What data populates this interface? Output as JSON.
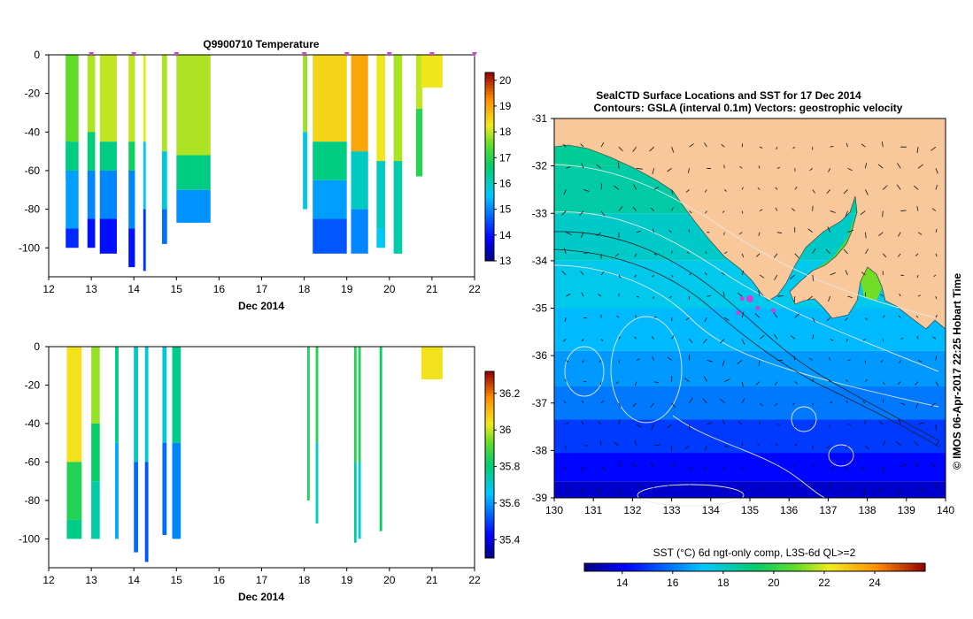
{
  "colors": {
    "land": "#f9c89a",
    "marker": "#d040d0",
    "axis": "#000000"
  },
  "chart_data": [
    {
      "type": "heatmap",
      "title": "Q9900710  Temperature",
      "xlabel": "Dec 2014",
      "ylabel": "",
      "xlim": [
        12,
        22
      ],
      "ylim": [
        -115,
        0
      ],
      "xticks": [
        "12",
        "13",
        "14",
        "15",
        "16",
        "17",
        "18",
        "19",
        "20",
        "21",
        "22"
      ],
      "yticks": [
        "0",
        "-20",
        "-40",
        "-60",
        "-80",
        "-100"
      ],
      "profile_markers_day": [
        13,
        14,
        15,
        18,
        19,
        20,
        21,
        22
      ],
      "colorbar": {
        "min": 13,
        "max": 20.3,
        "ticks": [
          "13",
          "14",
          "15",
          "16",
          "17",
          "18",
          "19",
          "20"
        ]
      },
      "profiles": [
        {
          "day": 12.45,
          "w": 0.1,
          "layers": [
            [
              0,
              -40,
              17.6
            ],
            [
              -40,
              -65,
              16.0
            ]
          ]
        },
        {
          "day": 12.55,
          "w": 0.3,
          "layers": [
            [
              0,
              -45,
              17.5
            ],
            [
              -45,
              -60,
              16.5
            ],
            [
              -60,
              -90,
              15.2
            ],
            [
              -90,
              -100,
              14.2
            ]
          ]
        },
        {
          "day": 13.0,
          "w": 0.18,
          "layers": [
            [
              0,
              -40,
              17.9
            ],
            [
              -40,
              -60,
              16.6
            ],
            [
              -60,
              -85,
              15.0
            ],
            [
              -85,
              -100,
              14.0
            ]
          ]
        },
        {
          "day": 13.4,
          "w": 0.4,
          "layers": [
            [
              0,
              -45,
              18.0
            ],
            [
              -45,
              -60,
              16.5
            ],
            [
              -60,
              -85,
              15.0
            ],
            [
              -85,
              -103,
              14.0
            ]
          ]
        },
        {
          "day": 13.95,
          "w": 0.15,
          "layers": [
            [
              0,
              -45,
              18.0
            ],
            [
              -45,
              -60,
              16.8
            ],
            [
              -60,
              -90,
              15.0
            ],
            [
              -90,
              -110,
              14.0
            ]
          ]
        },
        {
          "day": 14.25,
          "w": 0.06,
          "layers": [
            [
              0,
              -45,
              18.2
            ],
            [
              -45,
              -80,
              15.7
            ],
            [
              -80,
              -112,
              14.3
            ]
          ]
        },
        {
          "day": 14.72,
          "w": 0.12,
          "layers": [
            [
              0,
              -50,
              17.9
            ],
            [
              -50,
              -80,
              15.8
            ],
            [
              -80,
              -98,
              14.8
            ]
          ]
        },
        {
          "day": 15.4,
          "w": 0.8,
          "layers": [
            [
              0,
              -52,
              17.9
            ],
            [
              -52,
              -70,
              16.5
            ],
            [
              -70,
              -87,
              15.1
            ]
          ]
        },
        {
          "day": 18.02,
          "w": 0.1,
          "layers": [
            [
              0,
              -40,
              17.8
            ],
            [
              -40,
              -80,
              15.8
            ]
          ]
        },
        {
          "day": 18.6,
          "w": 0.8,
          "layers": [
            [
              0,
              -45,
              18.5
            ],
            [
              -45,
              -65,
              16.5
            ],
            [
              -65,
              -85,
              15.2
            ],
            [
              -85,
              -103,
              14.6
            ]
          ]
        },
        {
          "day": 19.3,
          "w": 0.4,
          "layers": [
            [
              0,
              -50,
              19.0
            ],
            [
              -50,
              -80,
              16.0
            ],
            [
              -80,
              -103,
              15.0
            ]
          ]
        },
        {
          "day": 19.8,
          "w": 0.2,
          "layers": [
            [
              0,
              -55,
              18.3
            ],
            [
              -55,
              -90,
              16.0
            ],
            [
              -90,
              -100,
              15.6
            ]
          ]
        },
        {
          "day": 20.2,
          "w": 0.2,
          "layers": [
            [
              0,
              -55,
              17.9
            ],
            [
              -55,
              -103,
              16.2
            ]
          ]
        },
        {
          "day": 20.7,
          "w": 0.15,
          "layers": [
            [
              0,
              -28,
              18.0
            ],
            [
              -28,
              -63,
              17.0
            ]
          ]
        },
        {
          "day": 21.0,
          "w": 0.5,
          "layers": [
            [
              0,
              -17,
              18.3
            ]
          ]
        }
      ]
    },
    {
      "type": "heatmap",
      "title": "",
      "xlabel": "Dec 2014",
      "ylabel": "",
      "xlim": [
        12,
        22
      ],
      "ylim": [
        -115,
        0
      ],
      "xticks": [
        "12",
        "13",
        "14",
        "15",
        "16",
        "17",
        "18",
        "19",
        "20",
        "21",
        "22"
      ],
      "yticks": [
        "0",
        "-20",
        "-40",
        "-60",
        "-80",
        "-100"
      ],
      "colorbar": {
        "min": 35.3,
        "max": 36.32,
        "ticks": [
          "35.4",
          "35.6",
          "35.8",
          "36",
          "36.2"
        ]
      },
      "profiles": [
        {
          "day": 12.6,
          "w": 0.35,
          "layers": [
            [
              0,
              -60,
              36.05
            ],
            [
              -60,
              -90,
              35.85
            ],
            [
              -90,
              -100,
              35.78
            ]
          ]
        },
        {
          "day": 13.1,
          "w": 0.2,
          "layers": [
            [
              0,
              -40,
              35.97
            ],
            [
              -40,
              -70,
              35.82
            ],
            [
              -70,
              -100,
              35.75
            ]
          ]
        },
        {
          "day": 13.6,
          "w": 0.08,
          "layers": [
            [
              0,
              -50,
              35.78
            ],
            [
              -50,
              -100,
              35.62
            ]
          ]
        },
        {
          "day": 14.05,
          "w": 0.1,
          "layers": [
            [
              0,
              -60,
              35.72
            ],
            [
              -60,
              -107,
              35.55
            ]
          ]
        },
        {
          "day": 14.3,
          "w": 0.08,
          "layers": [
            [
              0,
              -60,
              35.7
            ],
            [
              -60,
              -112,
              35.52
            ]
          ]
        },
        {
          "day": 14.72,
          "w": 0.1,
          "layers": [
            [
              0,
              -50,
              35.7
            ],
            [
              -50,
              -98,
              35.55
            ]
          ]
        },
        {
          "day": 15.0,
          "w": 0.2,
          "layers": [
            [
              0,
              -50,
              35.78
            ],
            [
              -50,
              -100,
              35.58
            ]
          ]
        },
        {
          "day": 18.1,
          "w": 0.06,
          "layers": [
            [
              0,
              -80,
              35.85
            ]
          ]
        },
        {
          "day": 18.3,
          "w": 0.06,
          "layers": [
            [
              0,
              -50,
              35.85
            ],
            [
              -50,
              -92,
              35.72
            ]
          ]
        },
        {
          "day": 19.2,
          "w": 0.06,
          "layers": [
            [
              0,
              -60,
              35.85
            ],
            [
              -60,
              -102,
              35.75
            ]
          ]
        },
        {
          "day": 19.3,
          "w": 0.06,
          "layers": [
            [
              0,
              -60,
              35.85
            ],
            [
              -60,
              -100,
              35.7
            ]
          ]
        },
        {
          "day": 19.8,
          "w": 0.06,
          "layers": [
            [
              0,
              -96,
              35.82
            ]
          ]
        },
        {
          "day": 21.0,
          "w": 0.5,
          "layers": [
            [
              0,
              -17,
              36.05
            ]
          ]
        }
      ]
    },
    {
      "type": "heatmap",
      "title": "SealCTD Surface Locations and SST for 17 Dec 2014",
      "subtitle": "Contours: GSLA (interval 0.1m) Vectors: geostrophic velocity",
      "xlabel": "",
      "ylabel": "",
      "xlim": [
        130,
        140
      ],
      "ylim": [
        -39,
        -31
      ],
      "xticks": [
        "130",
        "131",
        "132",
        "133",
        "134",
        "135",
        "136",
        "137",
        "138",
        "139",
        "140"
      ],
      "yticks": [
        "-31",
        "-32",
        "-33",
        "-34",
        "-35",
        "-36",
        "-37",
        "-38",
        "-39"
      ],
      "colorbar_label": "SST (°C) 6d ngt-only comp, L3S-6d QL>=2",
      "colorbar": {
        "min": 12.5,
        "max": 26,
        "ticks": [
          "14",
          "16",
          "18",
          "20",
          "22",
          "24"
        ]
      },
      "sst_bands": [
        {
          "lat": -31.5,
          "sst": 18.7
        },
        {
          "lat": -32.5,
          "sst": 18.5
        },
        {
          "lat": -33.5,
          "sst": 18.0
        },
        {
          "lat": -34.5,
          "sst": 17.5
        },
        {
          "lat": -35.5,
          "sst": 17.0
        },
        {
          "lat": -36.3,
          "sst": 16.5
        },
        {
          "lat": -37.0,
          "sst": 16.0
        },
        {
          "lat": -37.7,
          "sst": 15.0
        },
        {
          "lat": -38.4,
          "sst": 14.2
        },
        {
          "lat": -38.9,
          "sst": 13.5
        }
      ],
      "seal_locations": [
        [
          134.8,
          -34.8
        ],
        [
          135.0,
          -34.8
        ],
        [
          134.7,
          -35.1
        ],
        [
          135.2,
          -35.0
        ],
        [
          135.6,
          -35.05
        ]
      ],
      "side_label": "© IMOS 06-Apr-2017 22:25 Hobart Time"
    }
  ]
}
